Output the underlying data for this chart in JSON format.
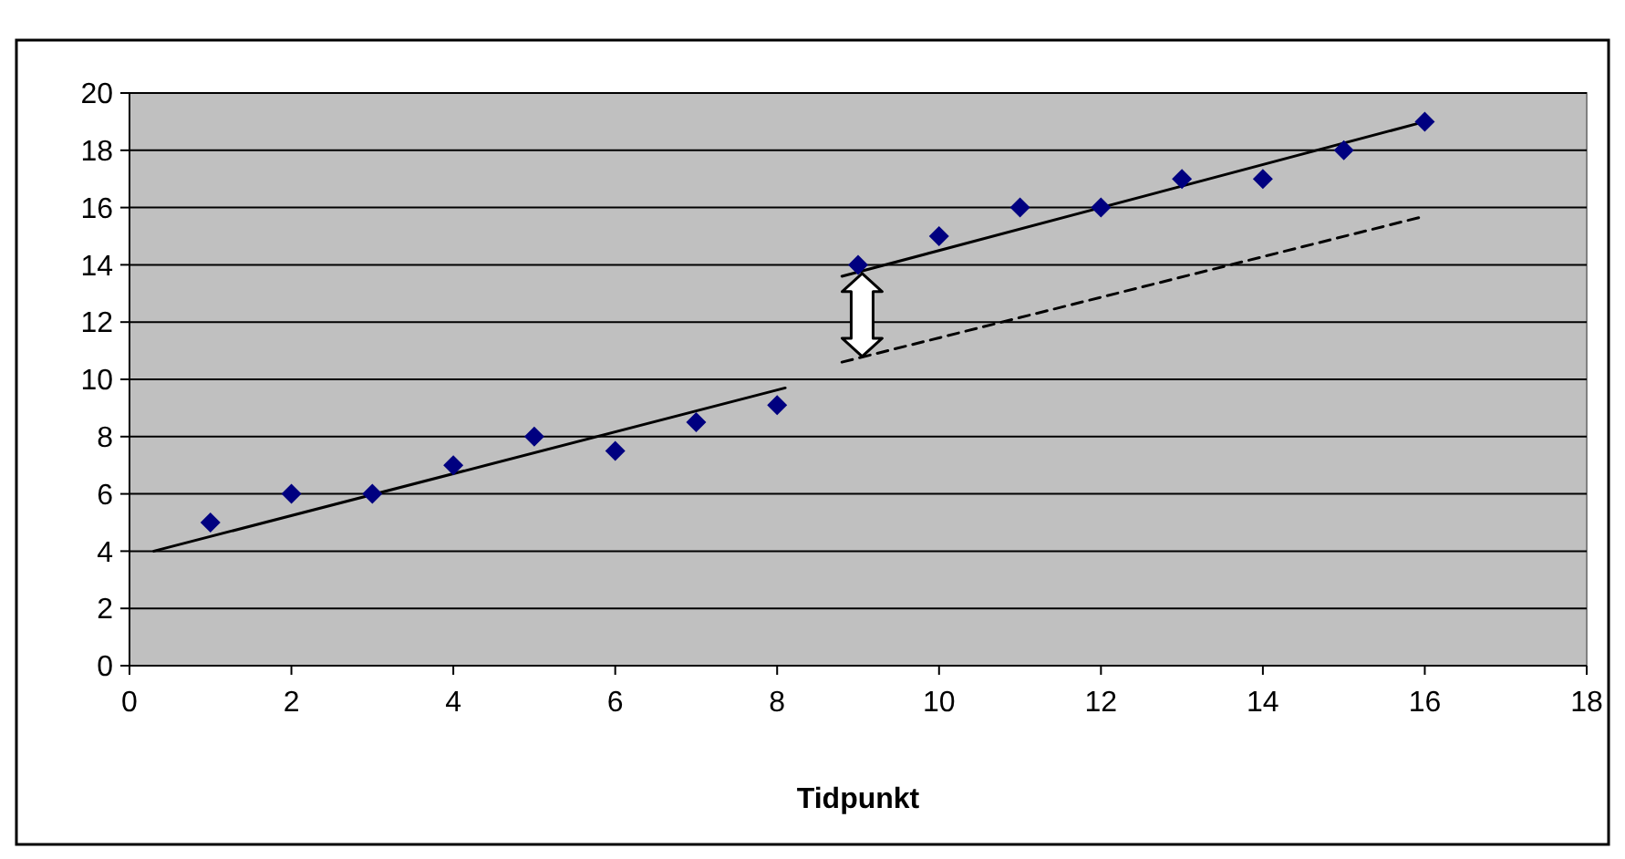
{
  "chart_data": {
    "type": "scatter",
    "xlabel": "Tidpunkt",
    "xlim": [
      0,
      18
    ],
    "xticks": [
      0,
      2,
      4,
      6,
      8,
      10,
      12,
      14,
      16,
      18
    ],
    "ylim": [
      0,
      20
    ],
    "yticks": [
      0,
      2,
      4,
      6,
      8,
      10,
      12,
      14,
      16,
      18,
      20
    ],
    "grid": "y",
    "series": [
      {
        "color": "#000080",
        "marker": "diamond",
        "x": [
          1,
          2,
          3,
          4,
          5,
          6,
          7,
          8,
          9,
          10,
          11,
          12,
          13,
          14,
          15,
          16
        ],
        "values": [
          5,
          6,
          6,
          7,
          8,
          7.5,
          8.5,
          9.1,
          14,
          15,
          16,
          16,
          17,
          17,
          18,
          19
        ]
      },
      {
        "type": "line",
        "color": "#000000",
        "line_style": "solid",
        "x": [
          0.3,
          8.1
        ],
        "values": [
          4,
          9.7
        ]
      },
      {
        "type": "line",
        "color": "#000000",
        "line_style": "solid",
        "x": [
          8.8,
          16
        ],
        "values": [
          13.6,
          19
        ]
      },
      {
        "type": "line",
        "color": "#000000",
        "line_style": "dashed",
        "x": [
          8.8,
          16
        ],
        "values": [
          10.6,
          15.7
        ]
      }
    ]
  }
}
